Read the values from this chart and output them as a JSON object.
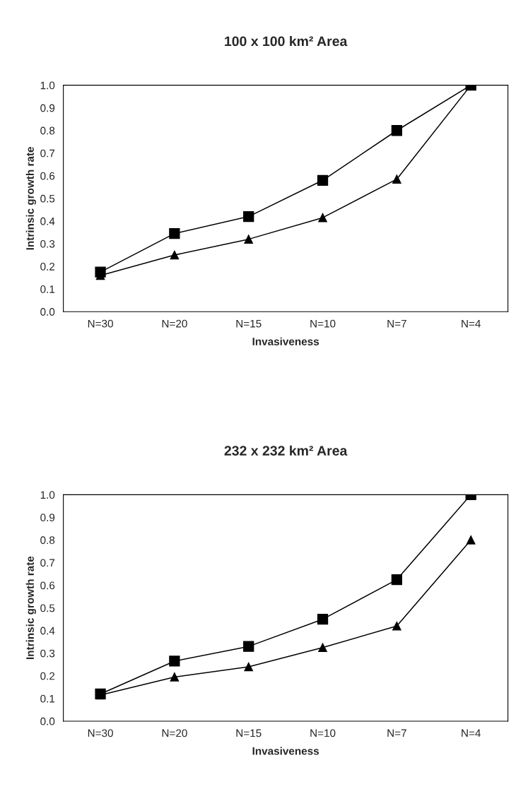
{
  "chart_data": [
    {
      "type": "line",
      "title": "100 x 100 km² Area",
      "xlabel": "Invasiveness",
      "ylabel": "Intrinsic growth rate",
      "categories": [
        "N=30",
        "N=20",
        "N=15",
        "N=10",
        "N=7",
        "N=4"
      ],
      "series": [
        {
          "color": "#000000",
          "marker": "square",
          "values": [
            0.175,
            0.345,
            0.42,
            0.58,
            0.8,
            1.0
          ]
        },
        {
          "color": "#000000",
          "marker": "triangle",
          "values": [
            0.16,
            0.25,
            0.32,
            0.415,
            0.585,
            1.0
          ]
        }
      ],
      "ylim": [
        0,
        1
      ],
      "yticks": [
        {
          "value": 0,
          "label": "0.0"
        },
        {
          "value": 0.1,
          "label": "0.1"
        },
        {
          "value": 0.2,
          "label": "0.2"
        },
        {
          "value": 0.3,
          "label": "0.3"
        },
        {
          "value": 0.4,
          "label": "0.4"
        },
        {
          "value": 0.5,
          "label": "0.5"
        },
        {
          "value": 0.6,
          "label": "0.6"
        },
        {
          "value": 0.7,
          "label": "0.7"
        },
        {
          "value": 0.8,
          "label": "0.8"
        },
        {
          "value": 0.9,
          "label": "0.9"
        },
        {
          "value": 1,
          "label": "1.0"
        }
      ],
      "grid": false,
      "legend": false
    },
    {
      "type": "line",
      "title": "232 x 232 km² Area",
      "xlabel": "Invasiveness",
      "ylabel": "Intrinsic growth rate",
      "categories": [
        "N=30",
        "N=20",
        "N=15",
        "N=10",
        "N=7",
        "N=4"
      ],
      "series": [
        {
          "color": "#000000",
          "marker": "square",
          "values": [
            0.12,
            0.265,
            0.33,
            0.45,
            0.625,
            1.0
          ]
        },
        {
          "color": "#000000",
          "marker": "triangle",
          "values": [
            0.115,
            0.195,
            0.24,
            0.325,
            0.42,
            0.8
          ]
        }
      ],
      "ylim": [
        0,
        1
      ],
      "yticks": [
        {
          "value": 0,
          "label": "0.0"
        },
        {
          "value": 0.1,
          "label": "0.1"
        },
        {
          "value": 0.2,
          "label": "0.2"
        },
        {
          "value": 0.3,
          "label": "0.3"
        },
        {
          "value": 0.4,
          "label": "0.4"
        },
        {
          "value": 0.5,
          "label": "0.5"
        },
        {
          "value": 0.6,
          "label": "0.6"
        },
        {
          "value": 0.7,
          "label": "0.7"
        },
        {
          "value": 0.8,
          "label": "0.8"
        },
        {
          "value": 0.9,
          "label": "0.9"
        },
        {
          "value": 1,
          "label": "1.0"
        }
      ],
      "grid": false,
      "legend": false
    }
  ]
}
